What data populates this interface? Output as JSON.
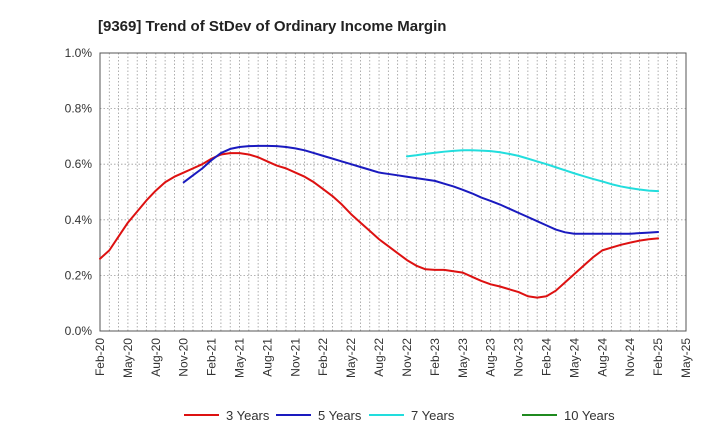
{
  "chart_data": {
    "type": "line",
    "title": "[9369]  Trend of StDev of Ordinary Income Margin",
    "xlabel": "",
    "ylabel": "",
    "ylim": [
      0,
      1.0
    ],
    "y_ticks": [
      0,
      0.2,
      0.4,
      0.6,
      0.8,
      1.0
    ],
    "y_tick_labels": [
      "0.0%",
      "0.2%",
      "0.4%",
      "0.6%",
      "0.8%",
      "1.0%"
    ],
    "x_tick_labels": [
      "Feb-20",
      "May-20",
      "Aug-20",
      "Nov-20",
      "Feb-21",
      "May-21",
      "Aug-21",
      "Nov-21",
      "Feb-22",
      "May-22",
      "Aug-22",
      "Nov-22",
      "Feb-23",
      "May-23",
      "Aug-23",
      "Nov-23",
      "Feb-24",
      "May-24",
      "Aug-24",
      "Nov-24",
      "Feb-25",
      "May-25"
    ],
    "x_range_months": [
      "2020-02",
      "2025-05"
    ],
    "grid": true,
    "legend_position": "bottom",
    "series": [
      {
        "name": "3 Years",
        "color": "#dd1111",
        "points": [
          [
            "2020-02",
            0.26
          ],
          [
            "2020-03",
            0.29
          ],
          [
            "2020-04",
            0.34
          ],
          [
            "2020-05",
            0.39
          ],
          [
            "2020-06",
            0.43
          ],
          [
            "2020-07",
            0.47
          ],
          [
            "2020-08",
            0.505
          ],
          [
            "2020-09",
            0.535
          ],
          [
            "2020-10",
            0.555
          ],
          [
            "2020-11",
            0.57
          ],
          [
            "2020-12",
            0.585
          ],
          [
            "2021-01",
            0.6
          ],
          [
            "2021-02",
            0.62
          ],
          [
            "2021-03",
            0.635
          ],
          [
            "2021-04",
            0.64
          ],
          [
            "2021-05",
            0.64
          ],
          [
            "2021-06",
            0.635
          ],
          [
            "2021-07",
            0.625
          ],
          [
            "2021-08",
            0.61
          ],
          [
            "2021-09",
            0.595
          ],
          [
            "2021-10",
            0.585
          ],
          [
            "2021-11",
            0.57
          ],
          [
            "2021-12",
            0.555
          ],
          [
            "2022-01",
            0.535
          ],
          [
            "2022-02",
            0.51
          ],
          [
            "2022-03",
            0.485
          ],
          [
            "2022-04",
            0.455
          ],
          [
            "2022-05",
            0.42
          ],
          [
            "2022-06",
            0.39
          ],
          [
            "2022-07",
            0.36
          ],
          [
            "2022-08",
            0.33
          ],
          [
            "2022-09",
            0.305
          ],
          [
            "2022-10",
            0.28
          ],
          [
            "2022-11",
            0.255
          ],
          [
            "2022-12",
            0.235
          ],
          [
            "2023-01",
            0.222
          ],
          [
            "2023-02",
            0.22
          ],
          [
            "2023-03",
            0.22
          ],
          [
            "2023-04",
            0.215
          ],
          [
            "2023-05",
            0.21
          ],
          [
            "2023-06",
            0.195
          ],
          [
            "2023-07",
            0.18
          ],
          [
            "2023-08",
            0.168
          ],
          [
            "2023-09",
            0.16
          ],
          [
            "2023-10",
            0.15
          ],
          [
            "2023-11",
            0.14
          ],
          [
            "2023-12",
            0.125
          ],
          [
            "2024-01",
            0.12
          ],
          [
            "2024-02",
            0.125
          ],
          [
            "2024-03",
            0.145
          ],
          [
            "2024-04",
            0.175
          ],
          [
            "2024-05",
            0.205
          ],
          [
            "2024-06",
            0.235
          ],
          [
            "2024-07",
            0.265
          ],
          [
            "2024-08",
            0.29
          ],
          [
            "2024-09",
            0.3
          ],
          [
            "2024-10",
            0.31
          ],
          [
            "2024-11",
            0.318
          ],
          [
            "2024-12",
            0.325
          ],
          [
            "2025-01",
            0.33
          ],
          [
            "2025-02",
            0.333
          ]
        ]
      },
      {
        "name": "5 Years",
        "color": "#1a1abf",
        "points": [
          [
            "2020-11",
            0.535
          ],
          [
            "2020-12",
            0.56
          ],
          [
            "2021-01",
            0.585
          ],
          [
            "2021-02",
            0.615
          ],
          [
            "2021-03",
            0.64
          ],
          [
            "2021-04",
            0.655
          ],
          [
            "2021-05",
            0.662
          ],
          [
            "2021-06",
            0.665
          ],
          [
            "2021-07",
            0.666
          ],
          [
            "2021-08",
            0.666
          ],
          [
            "2021-09",
            0.665
          ],
          [
            "2021-10",
            0.662
          ],
          [
            "2021-11",
            0.657
          ],
          [
            "2021-12",
            0.65
          ],
          [
            "2022-01",
            0.64
          ],
          [
            "2022-02",
            0.63
          ],
          [
            "2022-03",
            0.62
          ],
          [
            "2022-04",
            0.61
          ],
          [
            "2022-05",
            0.6
          ],
          [
            "2022-06",
            0.59
          ],
          [
            "2022-07",
            0.58
          ],
          [
            "2022-08",
            0.57
          ],
          [
            "2022-09",
            0.565
          ],
          [
            "2022-10",
            0.56
          ],
          [
            "2022-11",
            0.555
          ],
          [
            "2022-12",
            0.55
          ],
          [
            "2023-01",
            0.545
          ],
          [
            "2023-02",
            0.54
          ],
          [
            "2023-03",
            0.53
          ],
          [
            "2023-04",
            0.52
          ],
          [
            "2023-05",
            0.508
          ],
          [
            "2023-06",
            0.495
          ],
          [
            "2023-07",
            0.48
          ],
          [
            "2023-08",
            0.468
          ],
          [
            "2023-09",
            0.455
          ],
          [
            "2023-10",
            0.44
          ],
          [
            "2023-11",
            0.425
          ],
          [
            "2023-12",
            0.41
          ],
          [
            "2024-01",
            0.395
          ],
          [
            "2024-02",
            0.38
          ],
          [
            "2024-03",
            0.365
          ],
          [
            "2024-04",
            0.355
          ],
          [
            "2024-05",
            0.35
          ],
          [
            "2024-06",
            0.35
          ],
          [
            "2024-07",
            0.35
          ],
          [
            "2024-08",
            0.35
          ],
          [
            "2024-09",
            0.35
          ],
          [
            "2024-10",
            0.35
          ],
          [
            "2024-11",
            0.35
          ],
          [
            "2024-12",
            0.352
          ],
          [
            "2025-01",
            0.354
          ],
          [
            "2025-02",
            0.356
          ]
        ]
      },
      {
        "name": "7 Years",
        "color": "#22dddd",
        "points": [
          [
            "2022-11",
            0.628
          ],
          [
            "2022-12",
            0.632
          ],
          [
            "2023-01",
            0.637
          ],
          [
            "2023-02",
            0.641
          ],
          [
            "2023-03",
            0.645
          ],
          [
            "2023-04",
            0.648
          ],
          [
            "2023-05",
            0.65
          ],
          [
            "2023-06",
            0.65
          ],
          [
            "2023-07",
            0.649
          ],
          [
            "2023-08",
            0.647
          ],
          [
            "2023-09",
            0.643
          ],
          [
            "2023-10",
            0.637
          ],
          [
            "2023-11",
            0.63
          ],
          [
            "2023-12",
            0.62
          ],
          [
            "2024-01",
            0.61
          ],
          [
            "2024-02",
            0.6
          ],
          [
            "2024-03",
            0.589
          ],
          [
            "2024-04",
            0.578
          ],
          [
            "2024-05",
            0.567
          ],
          [
            "2024-06",
            0.557
          ],
          [
            "2024-07",
            0.547
          ],
          [
            "2024-08",
            0.538
          ],
          [
            "2024-09",
            0.528
          ],
          [
            "2024-10",
            0.52
          ],
          [
            "2024-11",
            0.514
          ],
          [
            "2024-12",
            0.509
          ],
          [
            "2025-01",
            0.505
          ],
          [
            "2025-02",
            0.503
          ]
        ]
      },
      {
        "name": "10 Years",
        "color": "#1f8a1f",
        "points": []
      }
    ]
  }
}
